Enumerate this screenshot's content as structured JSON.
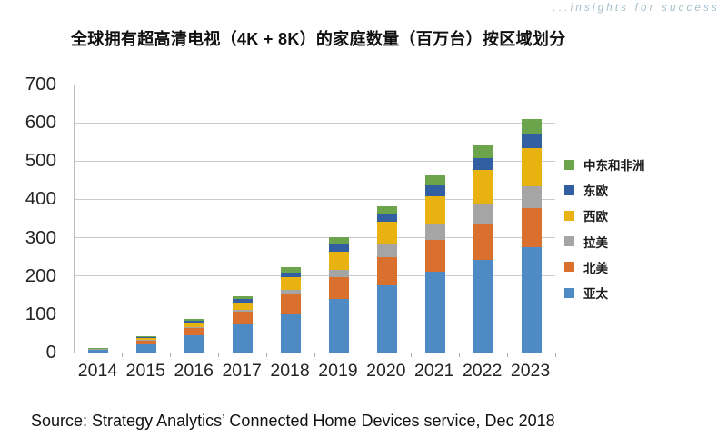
{
  "page": {
    "tagline": "...insights for success",
    "tagline_color": "#A6BDC9",
    "title": "全球拥有超高清电视（4K + 8K）的家庭数量（百万台）按区域划分",
    "source": "Source: Strategy Analytics’ Connected Home Devices service, Dec 2018"
  },
  "colors": {
    "grid": "#C9C9C9",
    "axis": "#ADADAD",
    "text": "#242424"
  },
  "chart_data": {
    "type": "bar",
    "stacked": true,
    "title": "全球拥有超高清电视（4K + 8K）的家庭数量（百万台）按区域划分",
    "xlabel": "",
    "ylabel": "",
    "unit": "百万台",
    "ylim": [
      0,
      700
    ],
    "ytick_step": 100,
    "grid": true,
    "legend_position": "right",
    "categories": [
      "2014",
      "2015",
      "2016",
      "2017",
      "2018",
      "2019",
      "2020",
      "2021",
      "2022",
      "2023"
    ],
    "series": [
      {
        "name": "亚太",
        "color": "#4E8BC4",
        "values": [
          7,
          22,
          45,
          73,
          101,
          140,
          175,
          211,
          243,
          276
        ]
      },
      {
        "name": "北美",
        "color": "#D9702D",
        "values": [
          2.5,
          10,
          18,
          33,
          52,
          56,
          75,
          83,
          95,
          102
        ]
      },
      {
        "name": "拉美",
        "color": "#A5A5A5",
        "values": [
          0.5,
          2,
          3,
          6,
          10,
          21,
          32,
          42,
          52,
          57
        ]
      },
      {
        "name": "西欧",
        "color": "#E8B310",
        "values": [
          1,
          6,
          12,
          19,
          34,
          46,
          60,
          72,
          87,
          100
        ]
      },
      {
        "name": "东欧",
        "color": "#315FA2",
        "values": [
          0.3,
          1,
          4,
          9,
          12,
          20,
          22,
          28,
          32,
          34
        ]
      },
      {
        "name": "中东和非洲",
        "color": "#6BA44B",
        "values": [
          0.4,
          2,
          5,
          8,
          14,
          18,
          19,
          27,
          32,
          41
        ]
      }
    ],
    "totals": [
      11.7,
      43,
      87,
      148,
      223,
      301,
      383,
      463,
      541,
      610
    ],
    "legend_order_top_to_bottom": [
      "中东和非洲",
      "东欧",
      "西欧",
      "拉美",
      "北美",
      "亚太"
    ]
  }
}
